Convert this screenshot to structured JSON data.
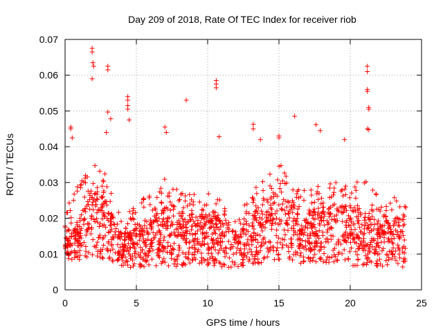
{
  "chart_data": {
    "type": "scatter",
    "title": "Day 209 of 2018, Rate Of TEC Index for receiver riob",
    "xlabel": "GPS time / hours",
    "ylabel": "ROTI / TECUs",
    "xlim": [
      0,
      25
    ],
    "ylim": [
      0,
      0.07
    ],
    "xticks": [
      0,
      5,
      10,
      15,
      20,
      25
    ],
    "xtick_labels": [
      "0",
      "5",
      "10",
      "15",
      "20",
      "25"
    ],
    "yticks": [
      0,
      0.01,
      0.02,
      0.03,
      0.04,
      0.05,
      0.06,
      0.07
    ],
    "ytick_labels": [
      "0",
      "0.01",
      "0.02",
      "0.03",
      "0.04",
      "0.05",
      "0.06",
      "0.07"
    ],
    "grid": true,
    "marker": "+",
    "color": "#ff0000",
    "outliers": [
      {
        "x": 1.9,
        "y": 0.0675
      },
      {
        "x": 1.9,
        "y": 0.0665
      },
      {
        "x": 1.95,
        "y": 0.0635
      },
      {
        "x": 2.0,
        "y": 0.0625
      },
      {
        "x": 1.9,
        "y": 0.059
      },
      {
        "x": 3.0,
        "y": 0.0625
      },
      {
        "x": 3.0,
        "y": 0.0615
      },
      {
        "x": 3.0,
        "y": 0.0497
      },
      {
        "x": 3.2,
        "y": 0.0478
      },
      {
        "x": 4.4,
        "y": 0.054
      },
      {
        "x": 4.4,
        "y": 0.053
      },
      {
        "x": 4.4,
        "y": 0.0515
      },
      {
        "x": 4.4,
        "y": 0.0505
      },
      {
        "x": 4.5,
        "y": 0.0475
      },
      {
        "x": 8.5,
        "y": 0.053
      },
      {
        "x": 10.6,
        "y": 0.0585
      },
      {
        "x": 10.6,
        "y": 0.0575
      },
      {
        "x": 10.6,
        "y": 0.0565
      },
      {
        "x": 10.8,
        "y": 0.0428
      },
      {
        "x": 13.2,
        "y": 0.0463
      },
      {
        "x": 13.2,
        "y": 0.045
      },
      {
        "x": 13.7,
        "y": 0.042
      },
      {
        "x": 16.1,
        "y": 0.0485
      },
      {
        "x": 17.6,
        "y": 0.0462
      },
      {
        "x": 17.9,
        "y": 0.0445
      },
      {
        "x": 19.6,
        "y": 0.042
      },
      {
        "x": 21.2,
        "y": 0.0625
      },
      {
        "x": 21.2,
        "y": 0.061
      },
      {
        "x": 21.2,
        "y": 0.056
      },
      {
        "x": 21.2,
        "y": 0.0555
      },
      {
        "x": 21.3,
        "y": 0.051
      },
      {
        "x": 21.3,
        "y": 0.0505
      },
      {
        "x": 21.2,
        "y": 0.045
      },
      {
        "x": 21.3,
        "y": 0.0448
      },
      {
        "x": 0.4,
        "y": 0.0455
      },
      {
        "x": 0.4,
        "y": 0.045
      },
      {
        "x": 0.5,
        "y": 0.0425
      },
      {
        "x": 2.9,
        "y": 0.044
      },
      {
        "x": 7.0,
        "y": 0.0455
      },
      {
        "x": 7.1,
        "y": 0.044
      },
      {
        "x": 15.0,
        "y": 0.043
      },
      {
        "x": 15.0,
        "y": 0.0425
      }
    ],
    "envelope": {
      "hours": [
        0,
        1,
        2,
        3,
        4,
        5,
        6,
        7,
        8,
        9,
        10,
        11,
        12,
        13,
        14,
        15,
        16,
        17,
        18,
        19,
        20,
        21,
        22,
        23,
        24
      ],
      "center": [
        0.012,
        0.014,
        0.02,
        0.016,
        0.011,
        0.012,
        0.013,
        0.015,
        0.015,
        0.014,
        0.014,
        0.013,
        0.011,
        0.014,
        0.016,
        0.019,
        0.015,
        0.015,
        0.016,
        0.016,
        0.015,
        0.014,
        0.013,
        0.013,
        0.014
      ],
      "upper": [
        0.025,
        0.03,
        0.035,
        0.033,
        0.02,
        0.024,
        0.027,
        0.032,
        0.029,
        0.027,
        0.027,
        0.025,
        0.019,
        0.027,
        0.032,
        0.036,
        0.028,
        0.028,
        0.03,
        0.03,
        0.029,
        0.032,
        0.027,
        0.026,
        0.025
      ],
      "lower": [
        0.008,
        0.008,
        0.009,
        0.008,
        0.006,
        0.006,
        0.006,
        0.006,
        0.006,
        0.007,
        0.006,
        0.006,
        0.006,
        0.007,
        0.007,
        0.008,
        0.007,
        0.007,
        0.007,
        0.007,
        0.006,
        0.006,
        0.006,
        0.006,
        0.006
      ],
      "samples": 1800,
      "x_end": 23.9
    }
  }
}
